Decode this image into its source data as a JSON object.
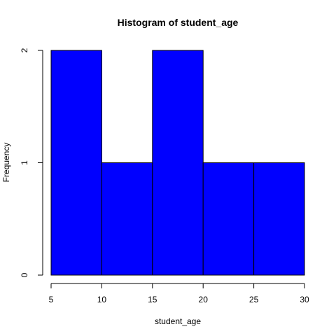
{
  "chart_data": {
    "type": "bar",
    "title": "Histogram of student_age",
    "xlabel": "student_age",
    "ylabel": "Frequency",
    "bins": [
      [
        5,
        10
      ],
      [
        10,
        15
      ],
      [
        15,
        20
      ],
      [
        20,
        25
      ],
      [
        25,
        30
      ]
    ],
    "values": [
      2,
      1,
      2,
      1,
      1
    ],
    "xlim": [
      5,
      30
    ],
    "ylim": [
      0,
      2
    ],
    "x_ticks": [
      "5",
      "10",
      "15",
      "20",
      "25",
      "30"
    ],
    "y_ticks": [
      "0",
      "1",
      "2"
    ],
    "bar_color": "#0000ff",
    "grid": false,
    "legend": "none"
  }
}
